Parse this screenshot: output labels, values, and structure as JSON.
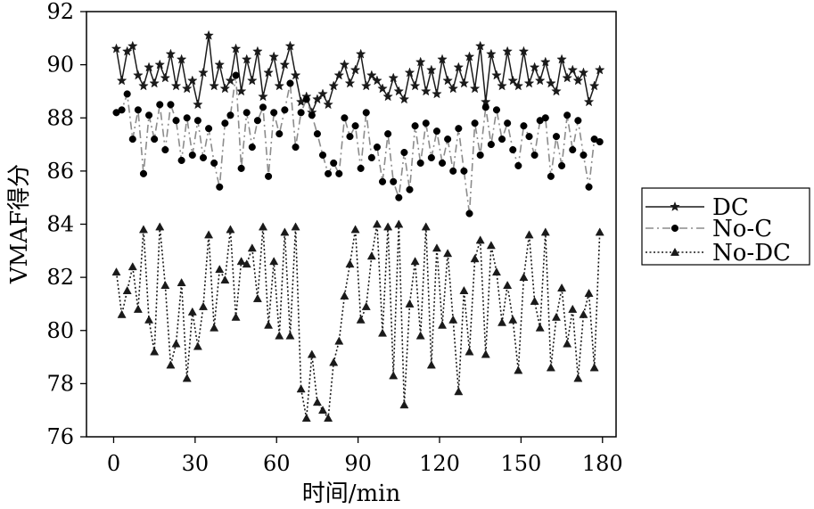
{
  "chart_data": {
    "type": "line",
    "title": "",
    "xlabel": "时间/min",
    "ylabel": "VMAF得分",
    "xlim": [
      -10,
      185
    ],
    "ylim": [
      76,
      92
    ],
    "xticks": [
      0,
      30,
      60,
      90,
      120,
      150,
      180
    ],
    "yticks": [
      76,
      78,
      80,
      82,
      84,
      86,
      88,
      90,
      92
    ],
    "xtick_labels": [
      "0",
      "30",
      "60",
      "90",
      "120",
      "150",
      "180"
    ],
    "ytick_labels": [
      "76",
      "78",
      "80",
      "82",
      "84",
      "86",
      "88",
      "90",
      "92"
    ],
    "grid": false,
    "legend_position": "right",
    "x": [
      1,
      3,
      5,
      7,
      9,
      11,
      13,
      15,
      17,
      19,
      21,
      23,
      25,
      27,
      29,
      31,
      33,
      35,
      37,
      39,
      41,
      43,
      45,
      47,
      49,
      51,
      53,
      55,
      57,
      59,
      61,
      63,
      65,
      67,
      69,
      71,
      73,
      75,
      77,
      79,
      81,
      83,
      85,
      87,
      89,
      91,
      93,
      95,
      97,
      99,
      101,
      103,
      105,
      107,
      109,
      111,
      113,
      115,
      117,
      119,
      121,
      123,
      125,
      127,
      129,
      131,
      133,
      135,
      137,
      139,
      141,
      143,
      145,
      147,
      149,
      151,
      153,
      155,
      157,
      159,
      161,
      163,
      165,
      167,
      169,
      171,
      173,
      175,
      177,
      179
    ],
    "series": [
      {
        "name": "DC",
        "marker": "star",
        "line_style": "solid",
        "color": "#1a1a1a",
        "values": [
          90.6,
          89.4,
          90.5,
          90.7,
          89.6,
          89.2,
          89.9,
          89.3,
          90.0,
          89.5,
          90.4,
          89.2,
          90.2,
          89.1,
          89.4,
          88.5,
          89.7,
          91.1,
          89.2,
          90.0,
          89.1,
          89.4,
          90.6,
          89.0,
          90.2,
          89.4,
          90.5,
          88.8,
          89.7,
          90.3,
          89.2,
          90.0,
          90.7,
          89.6,
          88.6,
          88.8,
          88.2,
          88.7,
          88.9,
          88.5,
          89.2,
          89.6,
          90.0,
          89.3,
          89.8,
          90.4,
          89.2,
          89.6,
          89.4,
          89.1,
          88.8,
          89.5,
          89.0,
          88.7,
          89.7,
          89.2,
          90.1,
          89.0,
          89.8,
          88.9,
          90.2,
          89.4,
          89.1,
          89.9,
          89.3,
          90.3,
          89.1,
          90.7,
          88.6,
          90.4,
          89.6,
          89.2,
          90.5,
          89.4,
          89.2,
          90.5,
          89.3,
          89.9,
          89.4,
          90.1,
          89.3,
          89.0,
          90.2,
          89.5,
          89.8,
          89.4,
          89.7,
          88.6,
          89.2,
          89.8
        ]
      },
      {
        "name": "No-C",
        "marker": "circle",
        "line_style": "dashdot",
        "color": "#8c8c8c",
        "values": [
          88.2,
          88.3,
          88.9,
          87.2,
          88.3,
          85.9,
          88.1,
          87.2,
          88.5,
          86.8,
          88.5,
          87.9,
          86.4,
          88.0,
          86.6,
          87.9,
          86.5,
          87.6,
          86.3,
          85.4,
          87.8,
          88.1,
          89.6,
          86.1,
          88.2,
          86.9,
          87.9,
          88.4,
          85.8,
          88.2,
          87.4,
          88.3,
          89.3,
          86.9,
          88.2,
          88.7,
          88.1,
          87.4,
          86.6,
          85.9,
          86.3,
          85.9,
          88.0,
          87.3,
          87.7,
          86.1,
          88.2,
          86.5,
          86.9,
          85.6,
          87.4,
          85.6,
          85.0,
          86.7,
          85.3,
          87.7,
          86.3,
          87.8,
          86.5,
          87.5,
          86.3,
          87.2,
          86.0,
          87.6,
          86.0,
          84.4,
          87.8,
          86.6,
          88.4,
          87.0,
          88.3,
          87.2,
          87.8,
          86.8,
          86.2,
          87.7,
          87.3,
          86.6,
          87.9,
          88.0,
          85.8,
          87.3,
          86.2,
          88.1,
          86.8,
          87.9,
          86.6,
          85.4,
          87.2,
          87.1
        ]
      },
      {
        "name": "No-DC",
        "marker": "triangle",
        "line_style": "dotted",
        "color": "#1a1a1a",
        "values": [
          82.2,
          80.6,
          81.5,
          82.4,
          80.8,
          83.8,
          80.4,
          79.2,
          83.9,
          81.7,
          78.7,
          79.5,
          81.8,
          78.2,
          80.7,
          79.4,
          80.9,
          83.6,
          80.1,
          82.3,
          81.9,
          83.8,
          80.5,
          82.6,
          82.5,
          83.1,
          81.2,
          83.9,
          80.2,
          82.6,
          79.8,
          83.7,
          79.8,
          83.9,
          77.8,
          76.7,
          79.1,
          77.3,
          77.0,
          76.7,
          78.8,
          79.6,
          81.3,
          82.5,
          83.8,
          80.4,
          80.9,
          82.8,
          84.0,
          79.9,
          83.9,
          78.3,
          84.0,
          77.2,
          81.0,
          82.6,
          79.8,
          83.9,
          78.7,
          83.1,
          80.2,
          82.9,
          80.4,
          77.7,
          81.5,
          79.2,
          82.7,
          83.4,
          79.1,
          83.2,
          82.2,
          80.3,
          81.7,
          80.4,
          78.5,
          82.0,
          83.6,
          81.1,
          80.1,
          83.7,
          78.6,
          80.5,
          81.6,
          79.5,
          80.8,
          78.2,
          80.6,
          81.4,
          78.6,
          83.7
        ]
      }
    ]
  }
}
